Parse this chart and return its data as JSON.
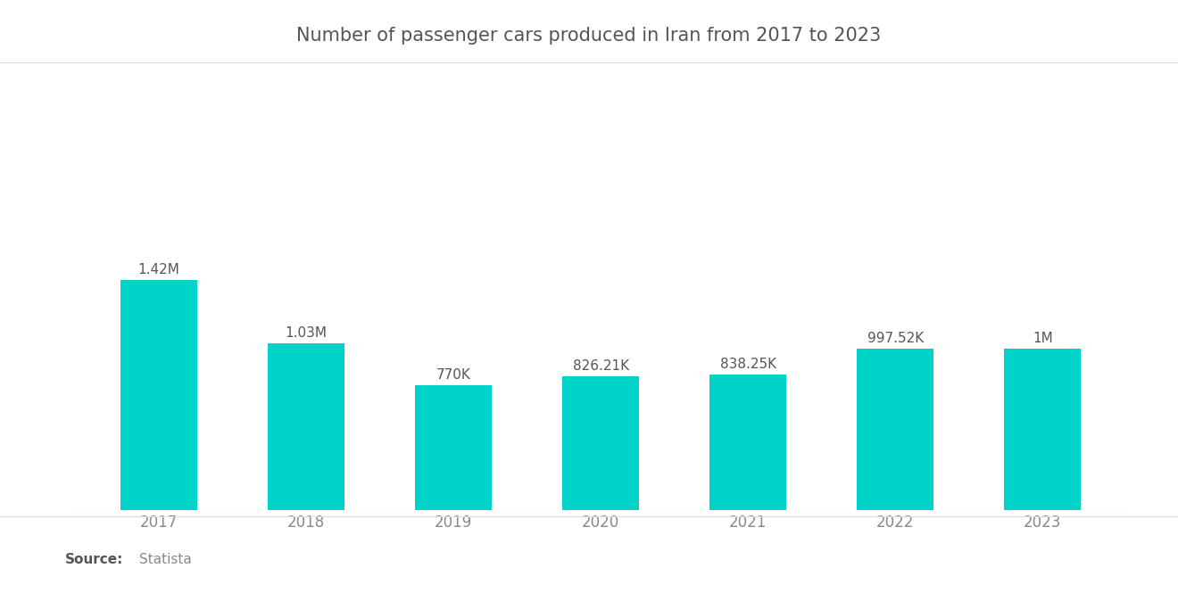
{
  "title": "Number of passenger cars produced in Iran from 2017 to 2023",
  "years": [
    "2017",
    "2018",
    "2019",
    "2020",
    "2021",
    "2022",
    "2023"
  ],
  "values": [
    1420000,
    1030000,
    770000,
    826210,
    838250,
    997520,
    1000000
  ],
  "labels": [
    "1.42M",
    "1.03M",
    "770K",
    "826.21K",
    "838.25K",
    "997.52K",
    "1M"
  ],
  "bar_color": "#00D4C8",
  "background_color": "#ffffff",
  "title_color": "#555555",
  "label_color": "#555555",
  "tick_color": "#888888",
  "source_bold": "Source:",
  "source_text": "Statista",
  "title_fontsize": 15,
  "label_fontsize": 11,
  "tick_fontsize": 12,
  "source_fontsize": 11,
  "ylim": [
    0,
    2200000
  ],
  "bar_width": 0.52
}
